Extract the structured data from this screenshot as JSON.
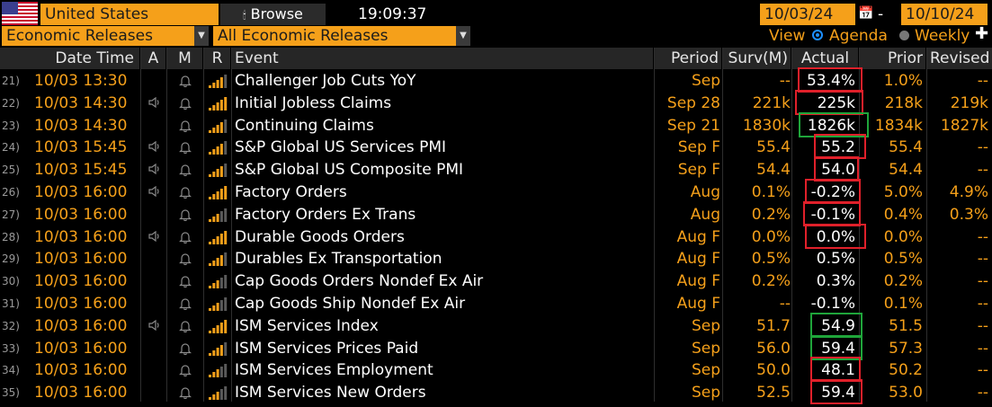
{
  "toolbar": {
    "country": "United States",
    "browse_label": "Browse",
    "clock": "19:09:37",
    "date_from": "10/03/24",
    "date_separator": "-",
    "date_to": "10/10/24",
    "release_category": "Economic Releases",
    "release_filter": "All Economic Releases",
    "view_label": "View",
    "view_agenda": "Agenda",
    "view_weekly": "Weekly",
    "selected_view": "Agenda"
  },
  "columns": {
    "date_time": "Date Time",
    "a": "A",
    "m": "M",
    "r": "R",
    "event": "Event",
    "period": "Period",
    "survey": "Surv(M)",
    "actual": "Actual",
    "prior": "Prior",
    "revised": "Revised"
  },
  "rows": [
    {
      "num": "21)",
      "datetime": "10/03 13:30",
      "alert": false,
      "bars": 3,
      "event": "Challenger Job Cuts YoY",
      "period": "Sep",
      "survey": "--",
      "actual": "53.4%",
      "prior": "1.0%",
      "revised": "--",
      "highlight": "red"
    },
    {
      "num": "22)",
      "datetime": "10/03 14:30",
      "alert": true,
      "bars": 4,
      "event": "Initial Jobless Claims",
      "period": "Sep 28",
      "survey": "221k",
      "actual": "225k",
      "prior": "218k",
      "revised": "219k",
      "highlight": "red"
    },
    {
      "num": "23)",
      "datetime": "10/03 14:30",
      "alert": false,
      "bars": 3,
      "event": "Continuing Claims",
      "period": "Sep 21",
      "survey": "1830k",
      "actual": "1826k",
      "prior": "1834k",
      "revised": "1827k",
      "highlight": "green"
    },
    {
      "num": "24)",
      "datetime": "10/03 15:45",
      "alert": true,
      "bars": 3,
      "event": "S&P Global US Services PMI",
      "period": "Sep F",
      "survey": "55.4",
      "actual": "55.2",
      "prior": "55.4",
      "revised": "--",
      "highlight": "red"
    },
    {
      "num": "25)",
      "datetime": "10/03 15:45",
      "alert": true,
      "bars": 3,
      "event": "S&P Global US Composite PMI",
      "period": "Sep F",
      "survey": "54.4",
      "actual": "54.0",
      "prior": "54.4",
      "revised": "--",
      "highlight": "red"
    },
    {
      "num": "26)",
      "datetime": "10/03 16:00",
      "alert": true,
      "bars": 4,
      "event": "Factory Orders",
      "period": "Aug",
      "survey": "0.1%",
      "actual": "-0.2%",
      "prior": "5.0%",
      "revised": "4.9%",
      "highlight": "red"
    },
    {
      "num": "27)",
      "datetime": "10/03 16:00",
      "alert": false,
      "bars": 2,
      "event": "Factory Orders Ex Trans",
      "period": "Aug",
      "survey": "0.2%",
      "actual": "-0.1%",
      "prior": "0.4%",
      "revised": "0.3%",
      "highlight": "red"
    },
    {
      "num": "28)",
      "datetime": "10/03 16:00",
      "alert": true,
      "bars": 4,
      "event": "Durable Goods Orders",
      "period": "Aug F",
      "survey": "0.0%",
      "actual": "0.0%",
      "prior": "0.0%",
      "revised": "--",
      "highlight": "red"
    },
    {
      "num": "29)",
      "datetime": "10/03 16:00",
      "alert": false,
      "bars": 3,
      "event": "Durables Ex Transportation",
      "period": "Aug F",
      "survey": "0.5%",
      "actual": "0.5%",
      "prior": "0.5%",
      "revised": "--",
      "highlight": ""
    },
    {
      "num": "30)",
      "datetime": "10/03 16:00",
      "alert": false,
      "bars": 2,
      "event": "Cap Goods Orders Nondef Ex Air",
      "period": "Aug F",
      "survey": "0.2%",
      "actual": "0.3%",
      "prior": "0.2%",
      "revised": "--",
      "highlight": ""
    },
    {
      "num": "31)",
      "datetime": "10/03 16:00",
      "alert": false,
      "bars": 2,
      "event": "Cap Goods Ship Nondef Ex Air",
      "period": "Aug F",
      "survey": "--",
      "actual": "-0.1%",
      "prior": "0.1%",
      "revised": "--",
      "highlight": ""
    },
    {
      "num": "32)",
      "datetime": "10/03 16:00",
      "alert": true,
      "bars": 4,
      "event": "ISM Services Index",
      "period": "Sep",
      "survey": "51.7",
      "actual": "54.9",
      "prior": "51.5",
      "revised": "--",
      "highlight": "green"
    },
    {
      "num": "33)",
      "datetime": "10/03 16:00",
      "alert": false,
      "bars": 3,
      "event": "ISM Services Prices Paid",
      "period": "Sep",
      "survey": "56.0",
      "actual": "59.4",
      "prior": "57.3",
      "revised": "--",
      "highlight": "green"
    },
    {
      "num": "34)",
      "datetime": "10/03 16:00",
      "alert": false,
      "bars": 2,
      "event": "ISM Services Employment",
      "period": "Sep",
      "survey": "50.0",
      "actual": "48.1",
      "prior": "50.2",
      "revised": "--",
      "highlight": "red"
    },
    {
      "num": "35)",
      "datetime": "10/03 16:00",
      "alert": false,
      "bars": 2,
      "event": "ISM Services New Orders",
      "period": "Sep",
      "survey": "52.5",
      "actual": "59.4",
      "prior": "53.0",
      "revised": "--",
      "highlight": "red"
    }
  ],
  "colors": {
    "accent": "#f5a01a",
    "highlight_red": "#e0202a",
    "highlight_green": "#1fa53a",
    "rank_bar_on": "#f5a01a",
    "rank_bar_off": "#5a5a5a"
  }
}
